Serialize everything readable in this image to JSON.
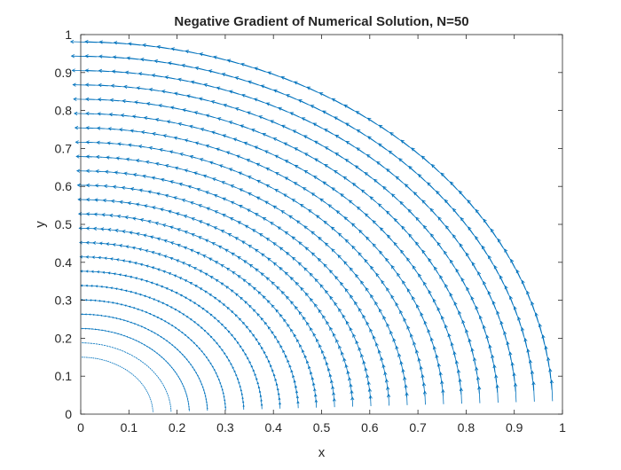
{
  "chart_data": {
    "type": "quiver",
    "title": "Negative Gradient of Numerical Solution, N=50",
    "xlabel": "x",
    "ylabel": "y",
    "xlim": [
      0,
      1
    ],
    "ylim": [
      0,
      1
    ],
    "xticks": [
      0,
      0.1,
      0.2,
      0.3,
      0.4,
      0.5,
      0.6,
      0.7,
      0.8,
      0.9,
      1
    ],
    "yticks": [
      0,
      0.1,
      0.2,
      0.3,
      0.4,
      0.5,
      0.6,
      0.7,
      0.8,
      0.9,
      1
    ],
    "xtick_labels": [
      "0",
      "0.1",
      "0.2",
      "0.3",
      "0.4",
      "0.5",
      "0.6",
      "0.7",
      "0.8",
      "0.9",
      "1"
    ],
    "ytick_labels": [
      "0",
      "0.1",
      "0.2",
      "0.3",
      "0.4",
      "0.5",
      "0.6",
      "0.7",
      "0.8",
      "0.9",
      "1"
    ],
    "grid": false,
    "box": true,
    "arrow_color": "#0072BD",
    "domain": {
      "shape": "quarter-annulus",
      "r_inner": 0.15,
      "r_outer": 0.98,
      "theta_range_deg": [
        2,
        88
      ],
      "radial_samples": 23,
      "angular_samples": 50
    },
    "field": {
      "description": "arrows point tangentially, counter-clockwise; magnitude grows with radius",
      "direction": "counter-clockwise tangential",
      "max_arrow_length": 0.055
    }
  }
}
